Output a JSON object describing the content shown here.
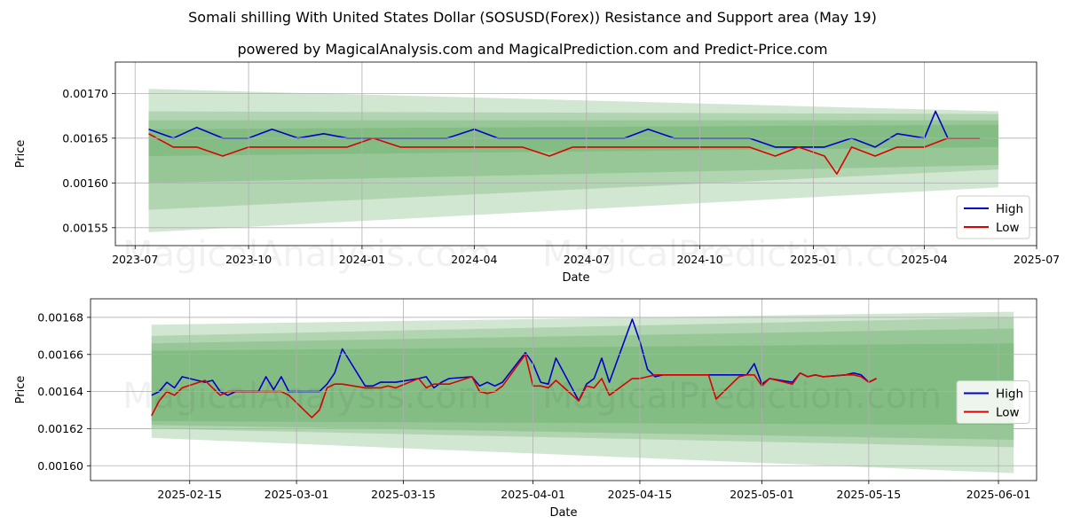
{
  "header": {
    "title": "Somali shilling With United States Dollar (SOSUSD(Forex)) Resistance and Support area (May 19)",
    "subtitle": "powered by MagicalAnalysis.com and MagicalPrediction.com and Predict-Price.com"
  },
  "watermarks": [
    "MagicalAnalysis.com",
    "MagicalPrediction.com"
  ],
  "colors": {
    "high": "#0000cc",
    "low": "#dd0000",
    "band": "#4a9e4a"
  },
  "chart_data": [
    {
      "type": "line",
      "xlabel": "Date",
      "ylabel": "Price",
      "grid": true,
      "legend_position": "bottom-right",
      "x_range": [
        "2023-06-15",
        "2025-07-01"
      ],
      "ylim": [
        0.00153,
        0.001735
      ],
      "x_ticks": [
        {
          "date": "2023-07-01",
          "label": "2023-07"
        },
        {
          "date": "2023-10-01",
          "label": "2023-10"
        },
        {
          "date": "2024-01-01",
          "label": "2024-01"
        },
        {
          "date": "2024-04-01",
          "label": "2024-04"
        },
        {
          "date": "2024-07-01",
          "label": "2024-07"
        },
        {
          "date": "2024-10-01",
          "label": "2024-10"
        },
        {
          "date": "2025-01-01",
          "label": "2025-01"
        },
        {
          "date": "2025-04-01",
          "label": "2025-04"
        },
        {
          "date": "2025-07-01",
          "label": "2025-07"
        }
      ],
      "y_ticks": [
        {
          "value": 0.00155,
          "label": "0.00155"
        },
        {
          "value": 0.0016,
          "label": "0.00160"
        },
        {
          "value": 0.00165,
          "label": "0.00165"
        },
        {
          "value": 0.0017,
          "label": "0.00170"
        }
      ],
      "series": [
        {
          "name": "High",
          "color": "#0000cc",
          "x": [
            "2023-07-12",
            "2023-08-01",
            "2023-08-20",
            "2023-09-10",
            "2023-10-01",
            "2023-10-20",
            "2023-11-10",
            "2023-12-01",
            "2023-12-20",
            "2024-01-10",
            "2024-02-01",
            "2024-02-20",
            "2024-03-10",
            "2024-04-01",
            "2024-04-20",
            "2024-05-10",
            "2024-06-01",
            "2024-06-20",
            "2024-07-10",
            "2024-08-01",
            "2024-08-20",
            "2024-09-10",
            "2024-10-01",
            "2024-10-20",
            "2024-11-10",
            "2024-12-01",
            "2024-12-20",
            "2025-01-10",
            "2025-02-01",
            "2025-02-20",
            "2025-03-10",
            "2025-04-01",
            "2025-04-10",
            "2025-04-20",
            "2025-05-01",
            "2025-05-16"
          ],
          "values": [
            0.00166,
            0.00165,
            0.001662,
            0.00165,
            0.00165,
            0.00166,
            0.00165,
            0.001655,
            0.00165,
            0.00165,
            0.00165,
            0.00165,
            0.00165,
            0.00166,
            0.00165,
            0.00165,
            0.00165,
            0.00165,
            0.00165,
            0.00165,
            0.00166,
            0.00165,
            0.00165,
            0.00165,
            0.00165,
            0.00164,
            0.00164,
            0.00164,
            0.00165,
            0.00164,
            0.001655,
            0.00165,
            0.00168,
            0.00165,
            0.00165,
            0.00165
          ]
        },
        {
          "name": "Low",
          "color": "#dd0000",
          "x": [
            "2023-07-12",
            "2023-08-01",
            "2023-08-20",
            "2023-09-10",
            "2023-10-01",
            "2023-10-20",
            "2023-11-10",
            "2023-12-01",
            "2023-12-20",
            "2024-01-10",
            "2024-02-01",
            "2024-02-20",
            "2024-03-10",
            "2024-04-01",
            "2024-04-20",
            "2024-05-10",
            "2024-06-01",
            "2024-06-20",
            "2024-07-10",
            "2024-08-01",
            "2024-08-20",
            "2024-09-10",
            "2024-10-01",
            "2024-10-20",
            "2024-11-10",
            "2024-12-01",
            "2024-12-20",
            "2025-01-10",
            "2025-01-20",
            "2025-02-01",
            "2025-02-20",
            "2025-03-10",
            "2025-04-01",
            "2025-04-20",
            "2025-05-01",
            "2025-05-16"
          ],
          "values": [
            0.001655,
            0.00164,
            0.00164,
            0.00163,
            0.00164,
            0.00164,
            0.00164,
            0.00164,
            0.00164,
            0.00165,
            0.00164,
            0.00164,
            0.00164,
            0.00164,
            0.00164,
            0.00164,
            0.00163,
            0.00164,
            0.00164,
            0.00164,
            0.00164,
            0.00164,
            0.00164,
            0.00164,
            0.00164,
            0.00163,
            0.00164,
            0.00163,
            0.00161,
            0.00164,
            0.00163,
            0.00164,
            0.00164,
            0.00165,
            0.00165,
            0.00165
          ]
        }
      ],
      "bands": [
        {
          "x": [
            "2023-07-12",
            "2025-05-31"
          ],
          "upper": [
            0.001705,
            0.00168
          ],
          "lower": [
            0.001545,
            0.001595
          ]
        },
        {
          "x": [
            "2023-07-12",
            "2025-05-31"
          ],
          "upper": [
            0.00168,
            0.001677
          ],
          "lower": [
            0.00157,
            0.001615
          ]
        },
        {
          "x": [
            "2023-07-12",
            "2025-05-31"
          ],
          "upper": [
            0.00167,
            0.00167
          ],
          "lower": [
            0.0016,
            0.00162
          ]
        },
        {
          "x": [
            "2023-07-12",
            "2025-05-31"
          ],
          "upper": [
            0.00166,
            0.001665
          ],
          "lower": [
            0.00163,
            0.00164
          ]
        }
      ]
    },
    {
      "type": "line",
      "xlabel": "Date",
      "ylabel": "Price",
      "grid": true,
      "legend_position": "center-right",
      "x_range": [
        "2025-02-02",
        "2025-06-06"
      ],
      "ylim": [
        0.001592,
        0.00169
      ],
      "x_ticks": [
        {
          "date": "2025-02-15",
          "label": "2025-02-15"
        },
        {
          "date": "2025-03-01",
          "label": "2025-03-01"
        },
        {
          "date": "2025-03-15",
          "label": "2025-03-15"
        },
        {
          "date": "2025-04-01",
          "label": "2025-04-01"
        },
        {
          "date": "2025-04-15",
          "label": "2025-04-15"
        },
        {
          "date": "2025-05-01",
          "label": "2025-05-01"
        },
        {
          "date": "2025-05-15",
          "label": "2025-05-15"
        },
        {
          "date": "2025-06-01",
          "label": "2025-06-01"
        }
      ],
      "y_ticks": [
        {
          "value": 0.0016,
          "label": "0.00160"
        },
        {
          "value": 0.00162,
          "label": "0.00162"
        },
        {
          "value": 0.00164,
          "label": "0.00164"
        },
        {
          "value": 0.00166,
          "label": "0.00166"
        },
        {
          "value": 0.00168,
          "label": "0.00168"
        }
      ],
      "series": [
        {
          "name": "High",
          "color": "#0000cc",
          "x": [
            "2025-02-10",
            "2025-02-11",
            "2025-02-12",
            "2025-02-13",
            "2025-02-14",
            "2025-02-17",
            "2025-02-18",
            "2025-02-19",
            "2025-02-20",
            "2025-02-21",
            "2025-02-24",
            "2025-02-25",
            "2025-02-26",
            "2025-02-27",
            "2025-02-28",
            "2025-03-03",
            "2025-03-04",
            "2025-03-05",
            "2025-03-06",
            "2025-03-07",
            "2025-03-10",
            "2025-03-11",
            "2025-03-12",
            "2025-03-13",
            "2025-03-14",
            "2025-03-17",
            "2025-03-18",
            "2025-03-19",
            "2025-03-20",
            "2025-03-21",
            "2025-03-24",
            "2025-03-25",
            "2025-03-26",
            "2025-03-27",
            "2025-03-28",
            "2025-03-31",
            "2025-04-01",
            "2025-04-02",
            "2025-04-03",
            "2025-04-04",
            "2025-04-07",
            "2025-04-08",
            "2025-04-09",
            "2025-04-10",
            "2025-04-11",
            "2025-04-14",
            "2025-04-15",
            "2025-04-16",
            "2025-04-17",
            "2025-04-18",
            "2025-04-21",
            "2025-04-22",
            "2025-04-23",
            "2025-04-24",
            "2025-04-25",
            "2025-04-28",
            "2025-04-29",
            "2025-04-30",
            "2025-05-01",
            "2025-05-02",
            "2025-05-05",
            "2025-05-06",
            "2025-05-07",
            "2025-05-08",
            "2025-05-09",
            "2025-05-12",
            "2025-05-13",
            "2025-05-14",
            "2025-05-15",
            "2025-05-16"
          ],
          "values": [
            0.001638,
            0.00164,
            0.001645,
            0.001642,
            0.001648,
            0.001645,
            0.001646,
            0.00164,
            0.001638,
            0.00164,
            0.00164,
            0.001648,
            0.001641,
            0.001648,
            0.00164,
            0.00164,
            0.00164,
            0.001644,
            0.00165,
            0.001663,
            0.001643,
            0.001643,
            0.001645,
            0.001645,
            0.001645,
            0.001647,
            0.001648,
            0.001642,
            0.001645,
            0.001647,
            0.001648,
            0.001643,
            0.001645,
            0.001643,
            0.001645,
            0.001661,
            0.001655,
            0.001645,
            0.001644,
            0.001658,
            0.001635,
            0.001644,
            0.001647,
            0.001658,
            0.001645,
            0.001679,
            0.001667,
            0.001652,
            0.001648,
            0.001649,
            0.001649,
            0.001649,
            0.001649,
            0.001649,
            0.001649,
            0.001649,
            0.001649,
            0.001655,
            0.001644,
            0.001647,
            0.001645,
            0.00165,
            0.001648,
            0.001649,
            0.001648,
            0.001649,
            0.00165,
            0.001649,
            0.001645,
            0.001647
          ]
        },
        {
          "name": "Low",
          "color": "#dd0000",
          "x": [
            "2025-02-10",
            "2025-02-11",
            "2025-02-12",
            "2025-02-13",
            "2025-02-14",
            "2025-02-17",
            "2025-02-18",
            "2025-02-19",
            "2025-02-20",
            "2025-02-21",
            "2025-02-24",
            "2025-02-25",
            "2025-02-26",
            "2025-02-27",
            "2025-02-28",
            "2025-03-03",
            "2025-03-04",
            "2025-03-05",
            "2025-03-06",
            "2025-03-07",
            "2025-03-10",
            "2025-03-11",
            "2025-03-12",
            "2025-03-13",
            "2025-03-14",
            "2025-03-17",
            "2025-03-18",
            "2025-03-19",
            "2025-03-20",
            "2025-03-21",
            "2025-03-24",
            "2025-03-25",
            "2025-03-26",
            "2025-03-27",
            "2025-03-28",
            "2025-03-31",
            "2025-04-01",
            "2025-04-02",
            "2025-04-03",
            "2025-04-04",
            "2025-04-07",
            "2025-04-08",
            "2025-04-09",
            "2025-04-10",
            "2025-04-11",
            "2025-04-14",
            "2025-04-15",
            "2025-04-16",
            "2025-04-17",
            "2025-04-18",
            "2025-04-21",
            "2025-04-22",
            "2025-04-23",
            "2025-04-24",
            "2025-04-25",
            "2025-04-28",
            "2025-04-29",
            "2025-04-30",
            "2025-05-01",
            "2025-05-02",
            "2025-05-05",
            "2025-05-06",
            "2025-05-07",
            "2025-05-08",
            "2025-05-09",
            "2025-05-12",
            "2025-05-13",
            "2025-05-14",
            "2025-05-15",
            "2025-05-16"
          ],
          "values": [
            0.001627,
            0.001635,
            0.00164,
            0.001638,
            0.001642,
            0.001646,
            0.001642,
            0.001638,
            0.00164,
            0.00164,
            0.00164,
            0.00164,
            0.00164,
            0.00164,
            0.001638,
            0.001626,
            0.00163,
            0.001642,
            0.001644,
            0.001644,
            0.001642,
            0.001642,
            0.001642,
            0.001643,
            0.001642,
            0.001647,
            0.001642,
            0.001644,
            0.001644,
            0.001644,
            0.001648,
            0.00164,
            0.001639,
            0.00164,
            0.001643,
            0.00166,
            0.001643,
            0.001643,
            0.001642,
            0.001646,
            0.001635,
            0.001643,
            0.001642,
            0.001647,
            0.001638,
            0.001647,
            0.001647,
            0.001648,
            0.001649,
            0.001649,
            0.001649,
            0.001649,
            0.001649,
            0.001649,
            0.001636,
            0.001648,
            0.001649,
            0.001649,
            0.001643,
            0.001647,
            0.001644,
            0.00165,
            0.001648,
            0.001649,
            0.001648,
            0.001649,
            0.001649,
            0.001648,
            0.001645,
            0.001647
          ]
        }
      ],
      "bands": [
        {
          "x": [
            "2025-02-10",
            "2025-06-03"
          ],
          "upper": [
            0.001676,
            0.001683
          ],
          "lower": [
            0.001615,
            0.001596
          ]
        },
        {
          "x": [
            "2025-02-10",
            "2025-06-03"
          ],
          "upper": [
            0.00167,
            0.00168
          ],
          "lower": [
            0.00162,
            0.00161
          ]
        },
        {
          "x": [
            "2025-02-10",
            "2025-06-03"
          ],
          "upper": [
            0.001666,
            0.001674
          ],
          "lower": [
            0.001622,
            0.001614
          ]
        },
        {
          "x": [
            "2025-02-10",
            "2025-06-03"
          ],
          "upper": [
            0.001662,
            0.001666
          ],
          "lower": [
            0.001624,
            0.001622
          ]
        }
      ]
    }
  ]
}
